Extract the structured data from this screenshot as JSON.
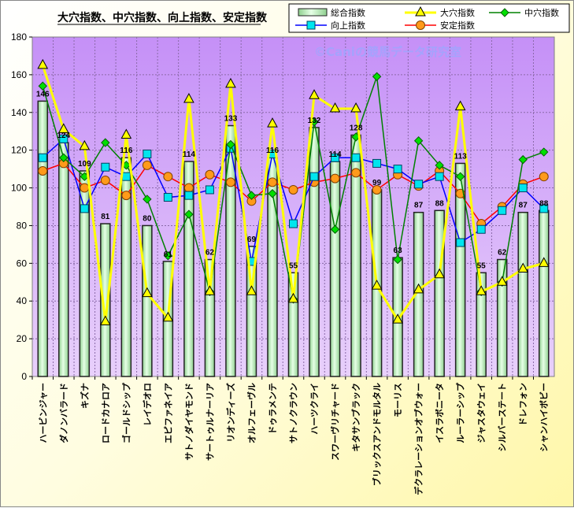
{
  "chart_data": {
    "type": "bar",
    "title": "大穴指数、中穴指数、向上指数、安定指数",
    "watermark": "©Caniの競馬データ研究室",
    "xlabel": "",
    "ylabel": "",
    "ylim": [
      0,
      180
    ],
    "yticks": [
      0,
      20,
      40,
      60,
      80,
      100,
      120,
      140,
      160,
      180
    ],
    "grid": true,
    "legend_position": "top-right",
    "categories": [
      "ハービンジャー",
      "ダノンバラード",
      "キズナ",
      "ロードカナロア",
      "ゴールドシップ",
      "レイデオロ",
      "エピファネイア",
      "サトノダイヤモンド",
      "サートゥルナーリア",
      "リオンディーズ",
      "オルフェーヴル",
      "ドゥラメンテ",
      "サトノクラウン",
      "ハーツクライ",
      "スワーヴリチャード",
      "キタサンブラック",
      "ブリックスアンドモルタル",
      "モーリス",
      "デクラレーションオブウォー",
      "イスラボニータ",
      "ルーラーシップ",
      "ジャスタウェイ",
      "シルバーステート",
      "ドレフォン",
      "シャンハイボビー"
    ],
    "series": [
      {
        "name": "総合指数",
        "type": "bar",
        "color": "#c8f5c8",
        "values": [
          146,
          124,
          109,
          81,
          116,
          80,
          61,
          114,
          62,
          133,
          69,
          116,
          55,
          132,
          114,
          128,
          99,
          63,
          87,
          88,
          113,
          55,
          62,
          87,
          88
        ]
      },
      {
        "name": "大穴指数",
        "type": "line",
        "color": "#ffff00",
        "marker": "triangle",
        "values": [
          165,
          131,
          122,
          29,
          128,
          44,
          31,
          147,
          45,
          155,
          45,
          134,
          41,
          149,
          142,
          142,
          48,
          30,
          46,
          54,
          143,
          45,
          50,
          57,
          60
        ]
      },
      {
        "name": "中穴指数",
        "type": "line",
        "color": "#008000",
        "marker": "diamond",
        "values": [
          154,
          116,
          106,
          124,
          112,
          94,
          64,
          86,
          45,
          123,
          96,
          97,
          41,
          135,
          78,
          127,
          159,
          62,
          125,
          112,
          106,
          45,
          50,
          115,
          119
        ]
      },
      {
        "name": "向上指数",
        "type": "line",
        "color": "#0000ff",
        "marker": "square",
        "values": [
          116,
          126,
          89,
          111,
          106,
          118,
          95,
          96,
          99,
          121,
          61,
          118,
          81,
          106,
          116,
          116,
          113,
          110,
          102,
          106,
          71,
          78,
          88,
          100,
          89
        ]
      },
      {
        "name": "安定指数",
        "type": "line",
        "color": "#ff0000",
        "marker": "circle",
        "values": [
          109,
          113,
          100,
          104,
          96,
          112,
          106,
          100,
          107,
          103,
          93,
          103,
          99,
          103,
          105,
          108,
          99,
          107,
          101,
          109,
          97,
          81,
          90,
          102,
          106
        ]
      }
    ]
  }
}
